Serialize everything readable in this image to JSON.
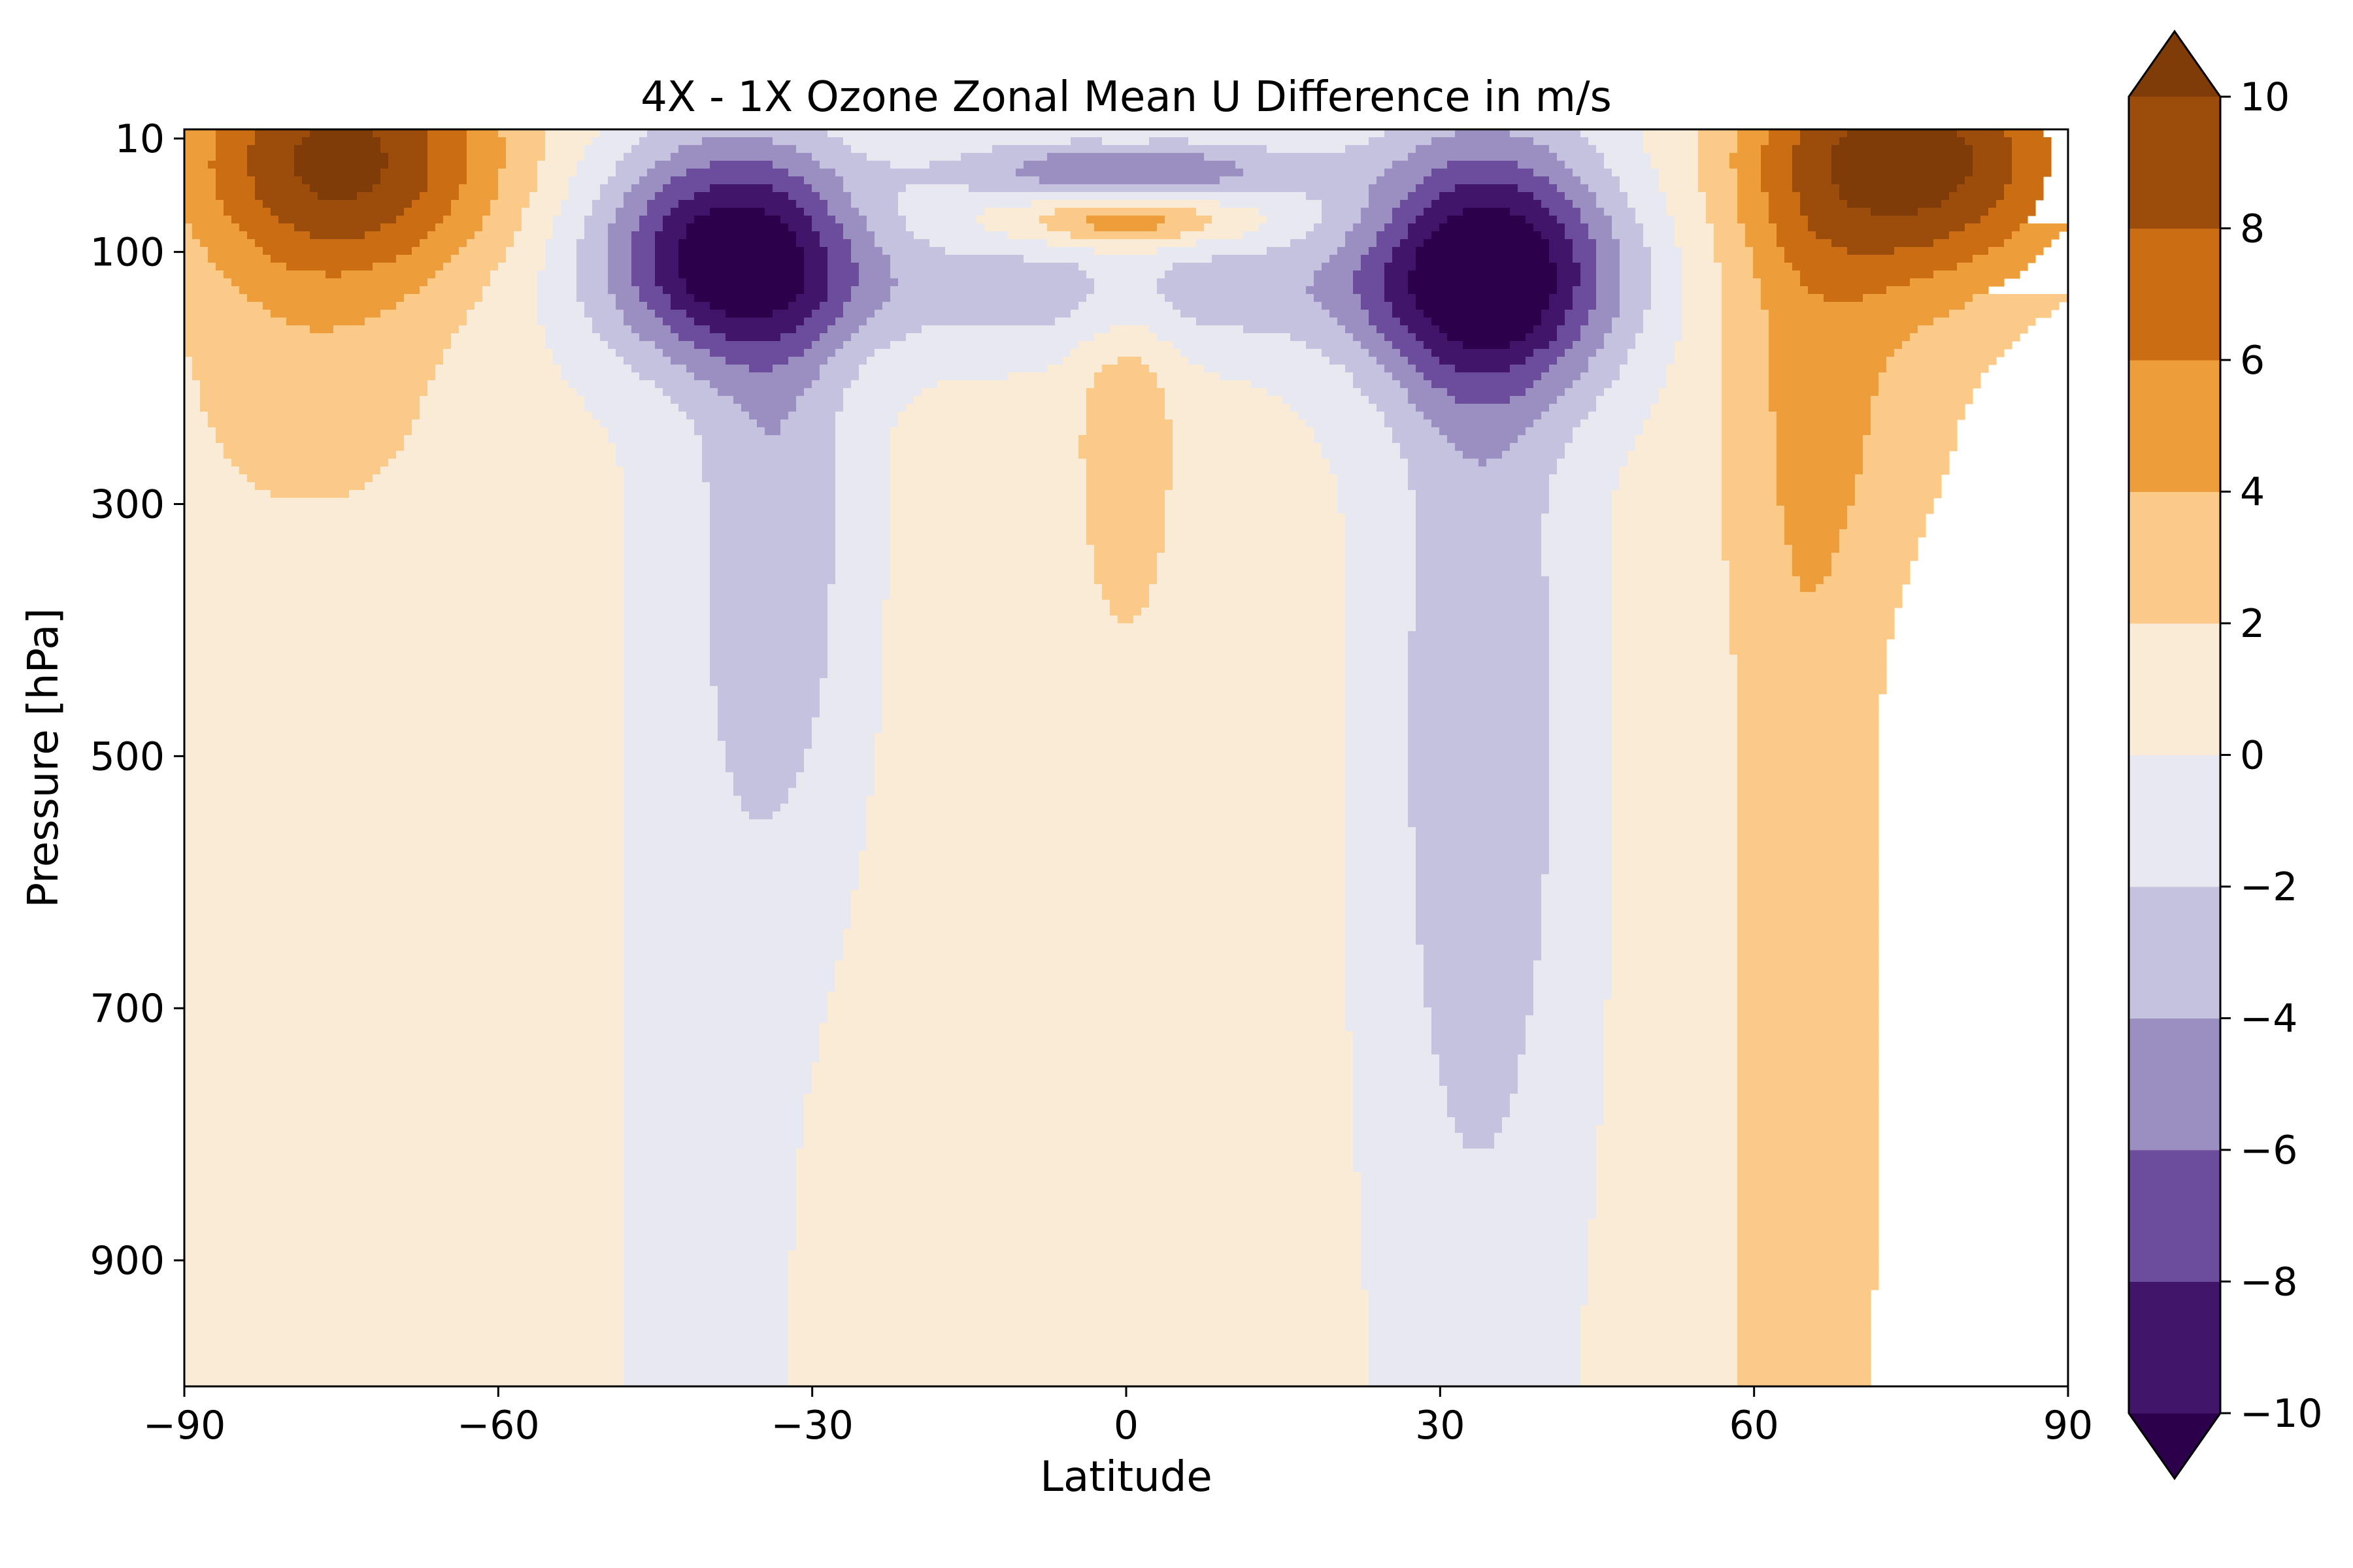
{
  "chart_data": {
    "type": "contourf",
    "title": "4X - 1X Ozone Zonal Mean U Difference in m/s",
    "xlabel": "Latitude",
    "ylabel": "Pressure [hPa]",
    "xlim": [
      -90,
      90
    ],
    "ylim": [
      1000,
      10
    ],
    "y_axis_inverted": true,
    "x_ticks": [
      "−90",
      "−60",
      "−30",
      "0",
      "30",
      "60",
      "90"
    ],
    "x_tick_values": [
      -90,
      -60,
      -30,
      0,
      30,
      60,
      90
    ],
    "y_ticks": [
      "10",
      "100",
      "300",
      "500",
      "700",
      "900"
    ],
    "y_tick_values": [
      10,
      100,
      300,
      500,
      700,
      900
    ],
    "grid": false,
    "levels": [
      -10,
      -8,
      -6,
      -4,
      -2,
      0,
      2,
      4,
      6,
      8,
      10
    ],
    "colormap": "PuOr_r",
    "colorbar": {
      "orientation": "vertical",
      "placement": "right",
      "extend": "both",
      "tick_labels": [
        "−10",
        "−8",
        "−6",
        "−4",
        "−2",
        "0",
        "2",
        "4",
        "6",
        "8",
        "10"
      ],
      "colors": {
        "under": "#2d004b",
        "-10_-8": "#411569",
        "-8_-6": "#6c4c9c",
        "-6_-4": "#9b8fc2",
        "-4_-2": "#c4c2df",
        "-2_0": "#e8e8f1",
        "0_2": "#faebd6",
        "2_4": "#fbca88",
        "4_6": "#ee9d3b",
        "6_8": "#cb6d12",
        "8_10": "#9c4c0b",
        "over": "#7f3b08"
      }
    },
    "features": [
      {
        "sign": "positive",
        "lat": -75,
        "pressure": 30,
        "peak": 9.5,
        "description_region": "SH high-latitude upper levels"
      },
      {
        "sign": "positive",
        "lat": 75,
        "pressure": 30,
        "peak": 9.5,
        "description_region": "NH high-latitude upper levels"
      },
      {
        "sign": "negative",
        "lat": -38,
        "pressure": 100,
        "peak": -9.5
      },
      {
        "sign": "negative",
        "lat": 35,
        "pressure": 100,
        "peak": -10.5
      },
      {
        "sign": "negative",
        "lat": 0,
        "pressure": 35,
        "peak": -6
      },
      {
        "sign": "positive",
        "lat": 0,
        "pressure": 75,
        "peak": 5
      },
      {
        "sign": "positive",
        "lat": 0,
        "pressure": 260,
        "peak": 3
      },
      {
        "sign": "positive",
        "lat": 65,
        "pressure": 700,
        "peak": 3.5
      },
      {
        "sign": "negative",
        "lat": -40,
        "pressure": 600,
        "peak": -1.5
      },
      {
        "sign": "negative",
        "lat": 33,
        "pressure": 600,
        "peak": -2.5
      }
    ]
  }
}
